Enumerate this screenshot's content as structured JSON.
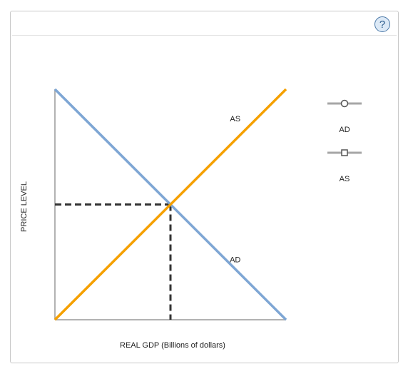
{
  "help": {
    "glyph": "?"
  },
  "chart_data": {
    "type": "line",
    "title": "",
    "xlabel": "REAL GDP (Billions of dollars)",
    "ylabel": "PRICE LEVEL",
    "xlim": [
      0,
      10
    ],
    "ylim": [
      0,
      10
    ],
    "grid": false,
    "legend_position": "right",
    "series": [
      {
        "name": "AD",
        "color": "#7ea6d4",
        "marker": "circle",
        "points": [
          [
            0,
            10
          ],
          [
            10,
            0
          ]
        ]
      },
      {
        "name": "AS",
        "color": "#f5a000",
        "marker": "square",
        "points": [
          [
            0,
            0
          ],
          [
            10,
            10
          ]
        ]
      }
    ],
    "curve_labels": [
      {
        "text": "AS",
        "x": 7.8,
        "y": 8.6
      },
      {
        "text": "AD",
        "x": 7.8,
        "y": 2.5
      }
    ],
    "equilibrium": {
      "x": 5,
      "y": 5,
      "guide_color": "#333333"
    }
  }
}
